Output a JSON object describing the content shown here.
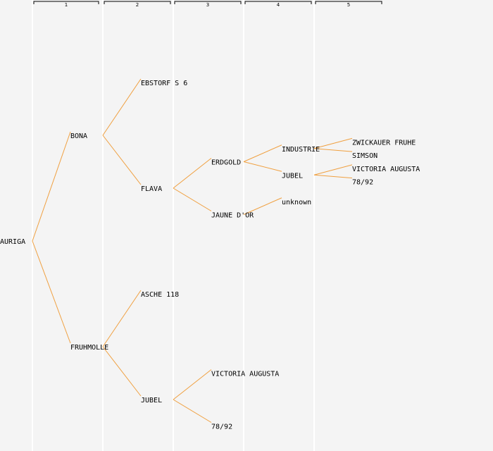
{
  "generations": [
    "1",
    "2",
    "3",
    "4",
    "5"
  ],
  "colors": {
    "background": "#f4f4f4",
    "column_line": "#ffffff",
    "edge": "#f0a040",
    "text": "#000000",
    "header_bracket": "#000000"
  },
  "tree": {
    "name": "AURIGA",
    "children": [
      {
        "name": "BONA",
        "children": [
          {
            "name": "EBSTORF S 6"
          },
          {
            "name": "FLAVA",
            "children": [
              {
                "name": "ERDGOLD",
                "children": [
                  {
                    "name": "INDUSTRIE",
                    "children": [
                      {
                        "name": "ZWICKAUER FRUHE"
                      },
                      {
                        "name": "SIMSON"
                      }
                    ]
                  },
                  {
                    "name": "JUBEL",
                    "children": [
                      {
                        "name": "VICTORIA AUGUSTA"
                      },
                      {
                        "name": "78/92"
                      }
                    ]
                  }
                ]
              },
              {
                "name": "JAUNE D'OR",
                "children": [
                  {
                    "name": "unknown"
                  }
                ]
              }
            ]
          }
        ]
      },
      {
        "name": "FRUHMOLLE",
        "children": [
          {
            "name": "ASCHE 118"
          },
          {
            "name": "JUBEL",
            "children": [
              {
                "name": "VICTORIA AUGUSTA"
              },
              {
                "name": "78/92"
              }
            ]
          }
        ]
      }
    ]
  }
}
